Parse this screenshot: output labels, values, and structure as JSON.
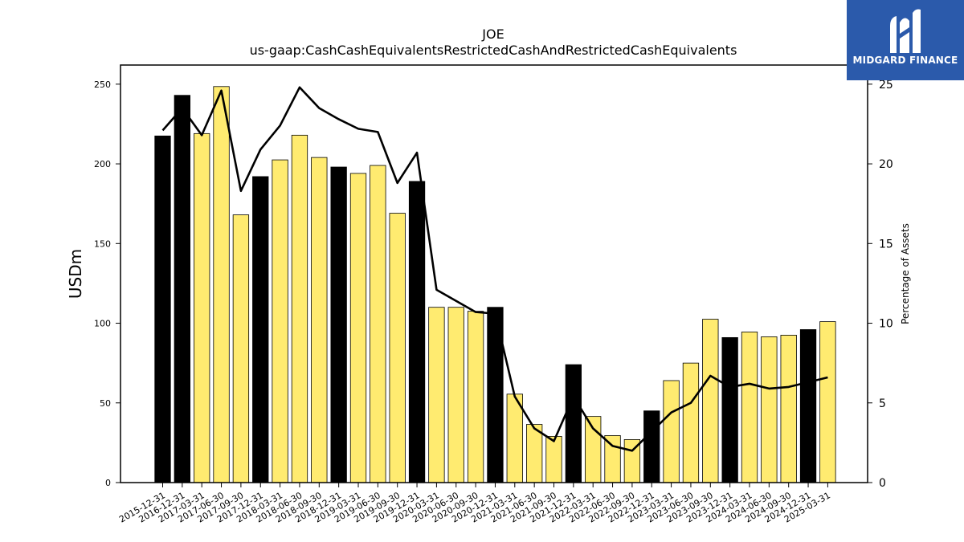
{
  "chart_data": {
    "type": "bar",
    "title": "JOE",
    "subtitle": "us-gaap:CashCashEquivalentsRestrictedCashAndRestrictedCashEquivalents",
    "ylabel": "USDm",
    "y2label": "Percentage of Assets",
    "ylim": [
      0,
      262
    ],
    "y2lim": [
      0,
      26.2
    ],
    "yticks": [
      "0",
      "50",
      "100",
      "150",
      "200",
      "250"
    ],
    "y2ticks": [
      "0",
      "5",
      "10",
      "15",
      "20",
      "25"
    ],
    "categories": [
      "2015-12-31",
      "2016-12-31",
      "2017-03-31",
      "2017-06-30",
      "2017-09-30",
      "2017-12-31",
      "2018-03-31",
      "2018-06-30",
      "2018-09-30",
      "2018-12-31",
      "2019-03-31",
      "2019-06-30",
      "2019-09-30",
      "2019-12-31",
      "2020-03-31",
      "2020-06-30",
      "2020-09-30",
      "2020-12-31",
      "2021-03-31",
      "2021-06-30",
      "2021-09-30",
      "2021-12-31",
      "2022-03-31",
      "2022-06-30",
      "2022-09-30",
      "2022-12-31",
      "2023-03-31",
      "2023-06-30",
      "2023-09-30",
      "2023-12-31",
      "2024-03-31",
      "2024-06-30",
      "2024-09-30",
      "2024-12-31",
      "2025-03-31"
    ],
    "series": [
      {
        "type": "bar",
        "values": [
          217.5,
          243,
          219,
          248.5,
          168,
          192,
          202.5,
          218,
          204,
          198,
          194,
          199,
          169,
          189,
          110,
          110,
          107.5,
          110,
          55.5,
          36.5,
          29,
          74,
          41.5,
          29.5,
          27,
          45,
          64,
          75,
          102.5,
          91,
          94.5,
          91.5,
          92.5,
          96,
          101
        ],
        "annual_flags": [
          true,
          true,
          false,
          false,
          false,
          true,
          false,
          false,
          false,
          true,
          false,
          false,
          false,
          true,
          false,
          false,
          false,
          true,
          false,
          false,
          false,
          true,
          false,
          false,
          false,
          true,
          false,
          false,
          false,
          true,
          false,
          false,
          false,
          true,
          false
        ]
      },
      {
        "type": "line",
        "axis": "right",
        "values": [
          22.1,
          23.5,
          21.8,
          24.6,
          18.3,
          20.9,
          22.4,
          24.8,
          23.5,
          22.8,
          22.2,
          22.0,
          18.8,
          20.7,
          12.1,
          11.4,
          10.7,
          10.6,
          5.4,
          3.4,
          2.6,
          5.4,
          3.4,
          2.3,
          2.0,
          3.2,
          4.4,
          5.0,
          6.7,
          6.0,
          6.2,
          5.9,
          6.0,
          6.3,
          6.6
        ]
      }
    ],
    "colors": {
      "annual_bar": "#000000",
      "quarterly_bar": "#ffeb70",
      "bar_edge": "#000000",
      "line": "#000000"
    }
  },
  "logo": {
    "text": "MIDGARD FINANCE",
    "background": "#2b5aab"
  }
}
